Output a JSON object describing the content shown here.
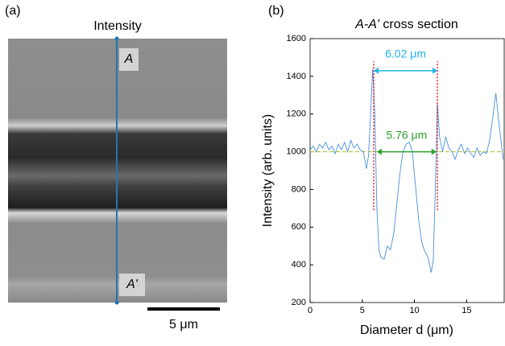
{
  "panel_a": {
    "label": "(a)",
    "title": "Intensity",
    "marker_top": "A",
    "marker_bottom": "A'",
    "scale_bar": "5 μm"
  },
  "chart_data": {
    "type": "line",
    "panel_label": "(b)",
    "title_italic": "A-A'",
    "title": "cross section",
    "x_label": "Diameter d (μm)",
    "y_label": "Intensity (arb. units)",
    "xlim": [
      0,
      18.6
    ],
    "xticks": [
      0,
      5,
      10,
      15
    ],
    "ylim": [
      200,
      1600
    ],
    "yticks": [
      200,
      400,
      600,
      800,
      1000,
      1200,
      1400,
      1600
    ],
    "x": [
      0,
      0.3,
      0.6,
      0.9,
      1.2,
      1.5,
      1.8,
      2.1,
      2.4,
      2.7,
      3.0,
      3.3,
      3.6,
      3.9,
      4.2,
      4.5,
      4.8,
      5.1,
      5.4,
      5.6,
      5.8,
      6.0,
      6.2,
      6.4,
      6.6,
      6.8,
      7.1,
      7.4,
      7.7,
      8.0,
      8.3,
      8.6,
      8.9,
      9.2,
      9.5,
      9.8,
      10.1,
      10.4,
      10.7,
      11.0,
      11.3,
      11.6,
      11.8,
      12.0,
      12.2,
      12.4,
      12.7,
      13.0,
      13.3,
      13.6,
      13.9,
      14.2,
      14.5,
      14.8,
      15.1,
      15.4,
      15.7,
      16.0,
      16.3,
      16.6,
      16.9,
      17.2,
      17.5,
      17.8,
      18.1,
      18.5
    ],
    "series": [
      {
        "name": "Intensity",
        "color": "#4a90d9",
        "values": [
          1010,
          1030,
          1000,
          1040,
          1020,
          1050,
          1010,
          1030,
          990,
          1040,
          1010,
          1050,
          1000,
          1060,
          1020,
          1040,
          1010,
          1000,
          910,
          980,
          1200,
          1440,
          1200,
          700,
          480,
          440,
          430,
          500,
          480,
          560,
          720,
          880,
          1000,
          1040,
          1050,
          1000,
          820,
          640,
          520,
          470,
          440,
          360,
          420,
          800,
          1260,
          1080,
          1000,
          1080,
          1020,
          1000,
          960,
          1010,
          1040,
          990,
          1020,
          990,
          970,
          1020,
          980,
          1000,
          990,
          1060,
          1180,
          1310,
          1150,
          960
        ]
      }
    ],
    "reference_y": 1000,
    "reference_color": "#b5c93a",
    "guides_x": [
      6.1,
      12.2
    ],
    "guide_range": [
      690,
      1480
    ],
    "guide_color": "#e0202a",
    "annotations": [
      {
        "text": "6.02 μm",
        "x": [
          6.1,
          12.2
        ],
        "y": 1430,
        "color": "#1fb4e8"
      },
      {
        "text": "5.76 μm",
        "x": [
          6.4,
          12.1
        ],
        "y": 1000,
        "color": "#2ca02c"
      }
    ]
  }
}
